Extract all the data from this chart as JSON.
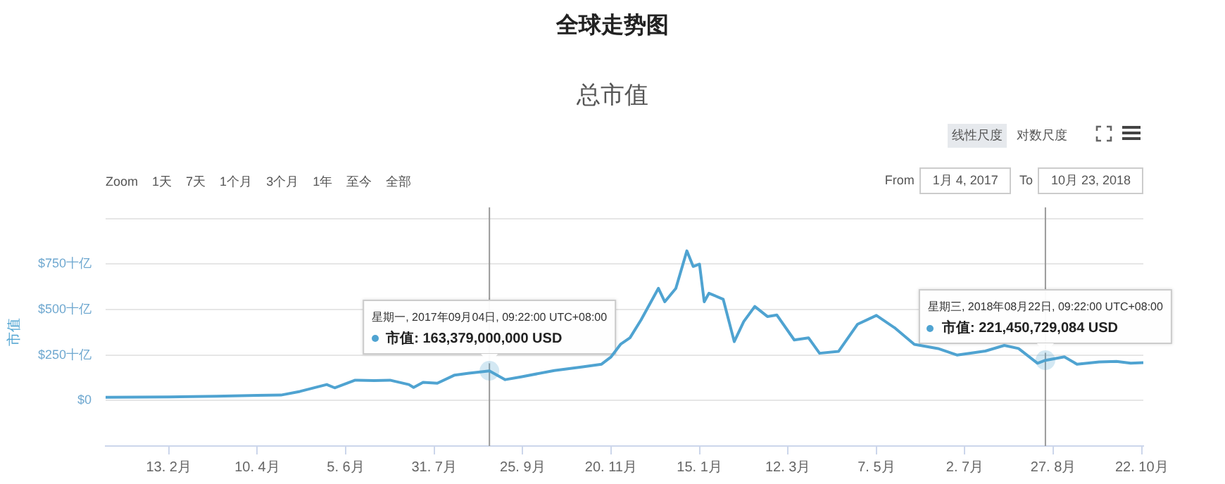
{
  "chart_data": {
    "type": "line",
    "title": "全球走势图",
    "subtitle": "总市值",
    "ylabel": "市值",
    "x": [
      "2017-01-04",
      "2017-02-13",
      "2017-03-15",
      "2017-04-10",
      "2017-04-25",
      "2017-05-07",
      "2017-05-24",
      "2017-05-29",
      "2017-06-11",
      "2017-06-23",
      "2017-07-03",
      "2017-07-15",
      "2017-07-18",
      "2017-07-24",
      "2017-08-02",
      "2017-08-13",
      "2017-08-22",
      "2017-09-04",
      "2017-09-14",
      "2017-09-24",
      "2017-10-15",
      "2017-11-02",
      "2017-11-14",
      "2017-11-20",
      "2017-11-26",
      "2017-12-02",
      "2017-12-09",
      "2017-12-20",
      "2017-12-24",
      "2017-12-31",
      "2018-01-07",
      "2018-01-11",
      "2018-01-15",
      "2018-01-18",
      "2018-01-21",
      "2018-01-30",
      "2018-02-06",
      "2018-02-12",
      "2018-02-19",
      "2018-02-27",
      "2018-03-05",
      "2018-03-16",
      "2018-03-25",
      "2018-04-01",
      "2018-04-13",
      "2018-04-25",
      "2018-05-07",
      "2018-05-19",
      "2018-05-31",
      "2018-06-15",
      "2018-06-27",
      "2018-07-15",
      "2018-07-27",
      "2018-08-05",
      "2018-08-17",
      "2018-08-22",
      "2018-09-03",
      "2018-09-11",
      "2018-09-25",
      "2018-10-06",
      "2018-10-15",
      "2018-10-23"
    ],
    "series": [
      {
        "color": "#4fa3d1",
        "values": [
          18,
          20,
          24,
          28,
          30,
          50,
          88,
          70,
          112,
          110,
          112,
          88,
          72,
          100,
          95,
          140,
          150,
          163,
          115,
          130,
          165,
          185,
          200,
          240,
          309,
          345,
          443,
          617,
          543,
          616,
          823,
          737,
          750,
          543,
          590,
          557,
          324,
          434,
          517,
          462,
          470,
          333,
          345,
          260,
          270,
          419,
          468,
          397,
          309,
          286,
          250,
          272,
          303,
          286,
          205,
          221,
          240,
          200,
          212,
          215,
          205,
          208
        ]
      }
    ],
    "xlim": [
      "2017-01-04",
      "2018-10-23"
    ],
    "xticks": [
      {
        "value": "2017-02-13",
        "label": "13. 2月"
      },
      {
        "value": "2017-04-10",
        "label": "10. 4月"
      },
      {
        "value": "2017-06-05",
        "label": "5. 6月"
      },
      {
        "value": "2017-07-31",
        "label": "31. 7月"
      },
      {
        "value": "2017-09-25",
        "label": "25. 9月"
      },
      {
        "value": "2017-11-20",
        "label": "20. 11月"
      },
      {
        "value": "2018-01-15",
        "label": "15. 1月"
      },
      {
        "value": "2018-03-12",
        "label": "12. 3月"
      },
      {
        "value": "2018-05-07",
        "label": "7. 5月"
      },
      {
        "value": "2018-07-02",
        "label": "2. 7月"
      },
      {
        "value": "2018-08-27",
        "label": "27. 8月"
      },
      {
        "value": "2018-10-22",
        "label": "22. 10月"
      }
    ],
    "ylim": [
      -250,
      1000
    ],
    "ref_lines": [
      {
        "axis": "x",
        "value": "2017-09-04",
        "color": "#999999"
      },
      {
        "axis": "x",
        "value": "2018-08-22",
        "color": "#999999"
      }
    ],
    "yticks": [
      {
        "value": 0,
        "label": "$0"
      },
      {
        "value": 250,
        "label": "$250十亿"
      },
      {
        "value": 500,
        "label": "$500十亿"
      },
      {
        "value": 750,
        "label": "$750十亿"
      },
      {
        "value": 1000,
        "label": null
      }
    ],
    "grid": "y",
    "legend": false,
    "marker": "none",
    "line_style": "solid",
    "annotations": [
      "Zoom",
      "1天",
      "7天",
      "1个月",
      "3个月",
      "1年",
      "至今",
      "全部",
      "线性尺度",
      "对数尺度",
      "From",
      "1月 4, 2017",
      "To",
      "10月 23, 2018",
      {
        "text": "星期一, 2017年09月04日, 09:22:00 UTC+08:00\n市值: 163,379,000,000 USD",
        "x": "2017-09-04",
        "y": 163.379
      },
      {
        "text": "星期三, 2018年08月22日, 09:22:00 UTC+08:00\n市值: 221,450,729,084 USD",
        "x": "2018-08-22",
        "y": 221.45
      }
    ]
  }
}
